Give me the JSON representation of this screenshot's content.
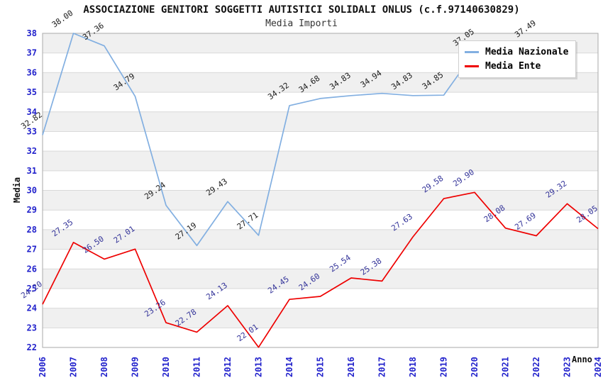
{
  "header": {
    "title": "ASSOCIAZIONE GENITORI SOGGETTI AUTISTICI SOLIDALI ONLUS (c.f.97140630829)",
    "subtitle": "Media Importi"
  },
  "axes": {
    "y_title": "Media",
    "x_title": "Anno"
  },
  "legend": {
    "items": [
      {
        "label": "Media Nazionale",
        "color": "#82afe1"
      },
      {
        "label": "Media Ente",
        "color": "#ee0000"
      }
    ]
  },
  "colors": {
    "tick_label": "#2222cc",
    "grid_line": "#d9d9d9",
    "band_gray": "#f0f0f0",
    "band_white": "#ffffff",
    "plot_border": "#aaaaaa",
    "nazionale_line": "#82afe1",
    "ente_line": "#ee0000",
    "nazionale_value_label": "#1a1a1a",
    "ente_value_label": "#333399"
  },
  "chart_data": {
    "type": "line",
    "title": "ASSOCIAZIONE GENITORI SOGGETTI AUTISTICI SOLIDALI ONLUS (c.f.97140630829)",
    "subtitle": "Media Importi",
    "xlabel": "Anno",
    "ylabel": "Media",
    "ylim": [
      22,
      38
    ],
    "y_tick_step": 1,
    "grid": "horizontal-bands",
    "legend_position": "top-right",
    "x": [
      2006,
      2007,
      2008,
      2009,
      2010,
      2011,
      2012,
      2013,
      2014,
      2015,
      2016,
      2017,
      2018,
      2019,
      2020,
      2021,
      2022,
      2023,
      2024
    ],
    "series": [
      {
        "name": "Media Nazionale",
        "color": "#82afe1",
        "label_color": "#1a1a1a",
        "values": [
          32.82,
          38.0,
          37.36,
          34.79,
          29.24,
          27.19,
          29.43,
          27.71,
          34.32,
          34.68,
          34.83,
          34.94,
          34.83,
          34.85,
          37.05,
          null,
          37.49,
          null,
          null
        ],
        "note": "2021 value label hidden behind legend; no data shown for 2023-2024"
      },
      {
        "name": "Media Ente",
        "color": "#ee0000",
        "label_color": "#333399",
        "values": [
          24.2,
          27.35,
          26.5,
          27.01,
          23.26,
          22.78,
          24.13,
          22.01,
          24.45,
          24.6,
          25.54,
          25.38,
          27.63,
          29.58,
          29.9,
          28.08,
          27.69,
          29.32,
          28.05
        ]
      }
    ]
  }
}
